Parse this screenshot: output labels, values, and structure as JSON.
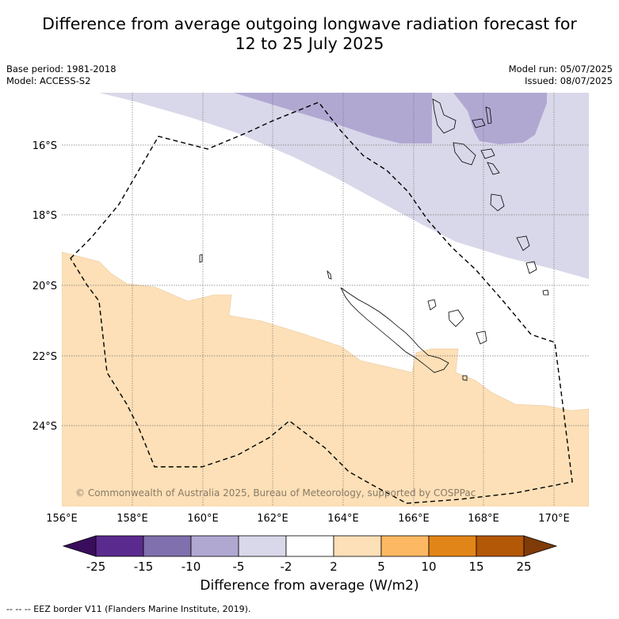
{
  "title_line1": "Difference from average outgoing longwave radiation forecast for",
  "title_line2": "12 to 25 July 2025",
  "base_period": "Base period: 1981-2018",
  "model": "Model: ACCESS-S2",
  "model_run": "Model run: 05/07/2025",
  "issued": "Issued: 08/07/2025",
  "copyright": "© Commonwealth of Australia 2025, Bureau of Meteorology, supported by COSPPac",
  "lon_ticks": [
    "156°E",
    "158°E",
    "160°E",
    "162°E",
    "164°E",
    "166°E",
    "168°E",
    "170°E"
  ],
  "lat_ticks": [
    "16°S",
    "18°S",
    "20°S",
    "22°S",
    "24°S"
  ],
  "colorbar": {
    "tick_labels": [
      "-25",
      "-15",
      "-10",
      "-5",
      "-2",
      "2",
      "5",
      "10",
      "15",
      "25"
    ],
    "colors": [
      "#3a0d5c",
      "#5b2a8e",
      "#8070ae",
      "#b1a8d2",
      "#d9d8ea",
      "#ffffff",
      "#fde0b7",
      "#fdb864",
      "#e28518",
      "#b35806",
      "#7f3b08"
    ],
    "label": "Difference from average (W/m2)"
  },
  "legend_footer": "--  --  -- EEZ border V11 (Flanders Marine Institute, 2019)."
}
